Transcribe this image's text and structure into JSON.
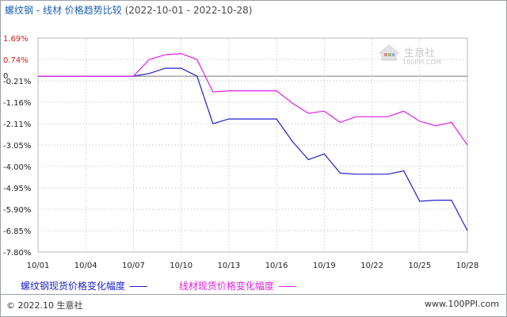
{
  "chart_data": {
    "type": "line",
    "title": "螺纹钢 - 线材 价格趋势比较",
    "date_range": "(2022-10-01 - 2022-10-28)",
    "x": [
      "10/01",
      "10/02",
      "10/03",
      "10/04",
      "10/05",
      "10/06",
      "10/07",
      "10/08",
      "10/09",
      "10/10",
      "10/11",
      "10/12",
      "10/13",
      "10/14",
      "10/15",
      "10/16",
      "10/17",
      "10/18",
      "10/19",
      "10/20",
      "10/21",
      "10/22",
      "10/23",
      "10/24",
      "10/25",
      "10/26",
      "10/27",
      "10/28"
    ],
    "x_tick_labels": [
      "10/01",
      "10/04",
      "10/07",
      "10/10",
      "10/13",
      "10/16",
      "10/19",
      "10/22",
      "10/25",
      "10/28"
    ],
    "y_tick_labels": [
      "1.69%",
      "0.74%",
      "-0.21%",
      "-1.16%",
      "-2.11%",
      "-3.05%",
      "-4.00%",
      "-4.95%",
      "-5.90%",
      "-6.85%",
      "-7.80%"
    ],
    "zero_label": "0",
    "ylim": [
      -7.8,
      1.69
    ],
    "grid": true,
    "legend_position": "bottom",
    "series": [
      {
        "name": "螺纹钢现货价格变化幅度",
        "color": "#1f1fc8",
        "values": [
          0,
          0,
          0,
          0,
          0,
          0,
          0,
          0.12,
          0.35,
          0.35,
          0,
          -2.11,
          -1.9,
          -1.9,
          -1.9,
          -1.9,
          -2.9,
          -3.7,
          -3.45,
          -4.3,
          -4.35,
          -4.35,
          -4.35,
          -4.2,
          -5.55,
          -5.5,
          -5.5,
          -6.85
        ]
      },
      {
        "name": "线材现货价格变化幅度",
        "color": "#e020e0",
        "values": [
          0,
          0,
          0,
          0,
          0,
          0,
          0,
          0.74,
          0.95,
          1.0,
          0.74,
          -0.7,
          -0.65,
          -0.65,
          -0.65,
          -0.65,
          -1.2,
          -1.65,
          -1.55,
          -2.05,
          -1.8,
          -1.8,
          -1.8,
          -1.55,
          -2.0,
          -2.2,
          -2.05,
          -3.05
        ]
      }
    ]
  },
  "watermark": {
    "brand": "生意社",
    "site": "100PPI.COM"
  },
  "footer": {
    "left": "© 2022.10 生意社",
    "right": "www.100PPI.com"
  }
}
